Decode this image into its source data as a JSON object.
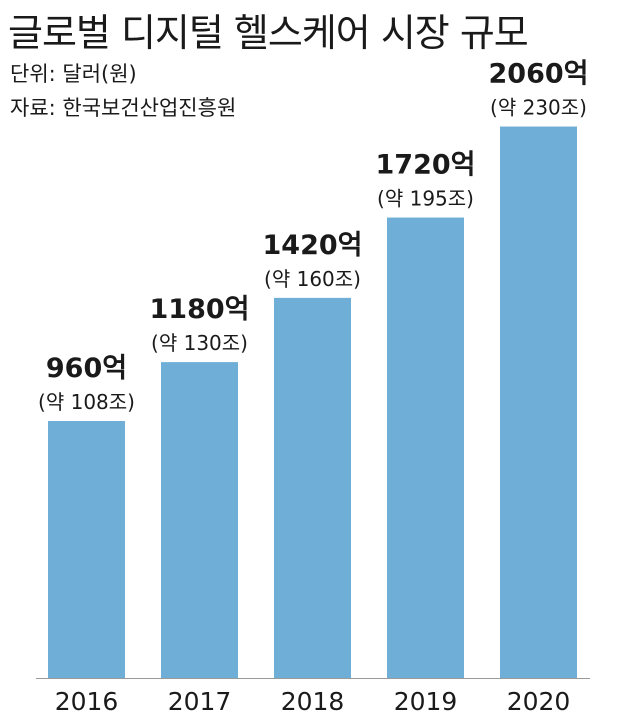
{
  "header": {
    "title": "글로벌 디지털 헬스케어 시장 규모",
    "unit": "단위: 달러(원)",
    "source": "자료: 한국보건산업진흥원"
  },
  "chart_data": {
    "type": "bar",
    "categories": [
      "2016",
      "2017",
      "2018",
      "2019",
      "2020"
    ],
    "values": [
      960,
      1180,
      1420,
      1720,
      2060
    ],
    "value_labels": [
      "960억",
      "1180억",
      "1420억",
      "1720억",
      "2060억"
    ],
    "sub_labels": [
      "(약 108조)",
      "(약 130조)",
      "(약 160조)",
      "(약 195조)",
      "(약 230조)"
    ],
    "title": "글로벌 디지털 헬스케어 시장 규모",
    "unit": "억 달러",
    "grid": false,
    "bar_color": "#6fafd7"
  }
}
